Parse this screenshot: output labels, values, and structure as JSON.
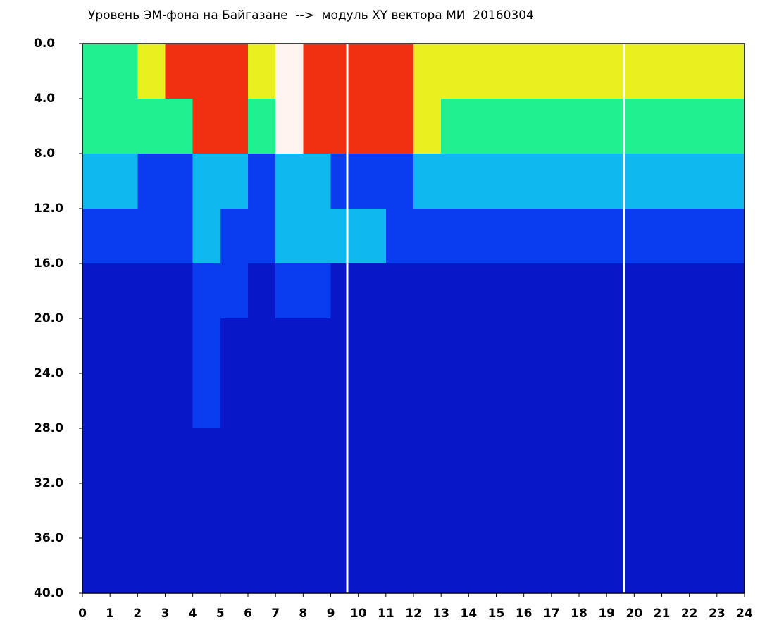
{
  "chart_data": {
    "type": "heatmap",
    "title": "Уровень ЭМ-фона на Байгазане  -->  модуль XY вектора МИ  20160304",
    "x_bins": [
      0,
      1,
      2,
      3,
      4,
      5,
      6,
      7,
      8,
      9,
      10,
      11,
      12,
      13,
      14,
      15,
      16,
      17,
      18,
      19,
      20,
      21,
      22,
      23,
      24
    ],
    "y_bins": [
      0,
      4,
      8,
      12,
      16,
      20,
      24,
      28,
      32,
      36,
      40
    ],
    "z": [
      [
        3,
        3,
        4,
        5,
        5,
        5,
        4,
        6,
        5,
        5,
        5,
        5,
        4,
        4,
        4,
        4,
        4,
        4,
        4,
        4,
        4,
        4,
        4,
        4
      ],
      [
        3,
        3,
        3,
        3,
        5,
        5,
        3,
        6,
        5,
        5,
        5,
        5,
        4,
        3,
        3,
        3,
        3,
        3,
        3,
        3,
        3,
        3,
        3,
        3
      ],
      [
        2,
        2,
        1,
        1,
        2,
        2,
        1,
        2,
        2,
        1,
        1,
        1,
        2,
        2,
        2,
        2,
        2,
        2,
        2,
        2,
        2,
        2,
        2,
        2
      ],
      [
        1,
        1,
        1,
        1,
        2,
        1,
        1,
        2,
        2,
        2,
        2,
        1,
        1,
        1,
        1,
        1,
        1,
        1,
        1,
        1,
        1,
        1,
        1,
        1
      ],
      [
        0,
        0,
        0,
        0,
        1,
        1,
        0,
        1,
        1,
        0,
        0,
        0,
        0,
        0,
        0,
        0,
        0,
        0,
        0,
        0,
        0,
        0,
        0,
        0
      ],
      [
        0,
        0,
        0,
        0,
        1,
        0,
        0,
        0,
        0,
        0,
        0,
        0,
        0,
        0,
        0,
        0,
        0,
        0,
        0,
        0,
        0,
        0,
        0,
        0
      ],
      [
        0,
        0,
        0,
        0,
        1,
        0,
        0,
        0,
        0,
        0,
        0,
        0,
        0,
        0,
        0,
        0,
        0,
        0,
        0,
        0,
        0,
        0,
        0,
        0
      ],
      [
        0,
        0,
        0,
        0,
        0,
        0,
        0,
        0,
        0,
        0,
        0,
        0,
        0,
        0,
        0,
        0,
        0,
        0,
        0,
        0,
        0,
        0,
        0,
        0
      ],
      [
        0,
        0,
        0,
        0,
        0,
        0,
        0,
        0,
        0,
        0,
        0,
        0,
        0,
        0,
        0,
        0,
        0,
        0,
        0,
        0,
        0,
        0,
        0,
        0
      ],
      [
        0,
        0,
        0,
        0,
        0,
        0,
        0,
        0,
        0,
        0,
        0,
        0,
        0,
        0,
        0,
        0,
        0,
        0,
        0,
        0,
        0,
        0,
        0,
        0
      ]
    ],
    "colors": [
      "#0818c8",
      "#0a3cf0",
      "#10b8f0",
      "#20f090",
      "#e8f020",
      "#f03010",
      "#fff4f0"
    ],
    "xlim": [
      0,
      24
    ],
    "ylim": [
      0,
      40
    ],
    "y_inverted": true,
    "xticks": [
      0,
      1,
      2,
      3,
      4,
      5,
      6,
      7,
      8,
      9,
      10,
      11,
      12,
      13,
      14,
      15,
      16,
      17,
      18,
      19,
      20,
      21,
      22,
      23,
      24
    ],
    "yticks": [
      {
        "value": 0,
        "label": "0.0"
      },
      {
        "value": 4,
        "label": "4.0"
      },
      {
        "value": 8,
        "label": "8.0"
      },
      {
        "value": 12,
        "label": "12.0"
      },
      {
        "value": 16,
        "label": "16.0"
      },
      {
        "value": 20,
        "label": "20.0"
      },
      {
        "value": 24,
        "label": "24.0"
      },
      {
        "value": 28,
        "label": "28.0"
      },
      {
        "value": 32,
        "label": "32.0"
      },
      {
        "value": 36,
        "label": "36.0"
      },
      {
        "value": 40,
        "label": "40.0"
      }
    ]
  }
}
